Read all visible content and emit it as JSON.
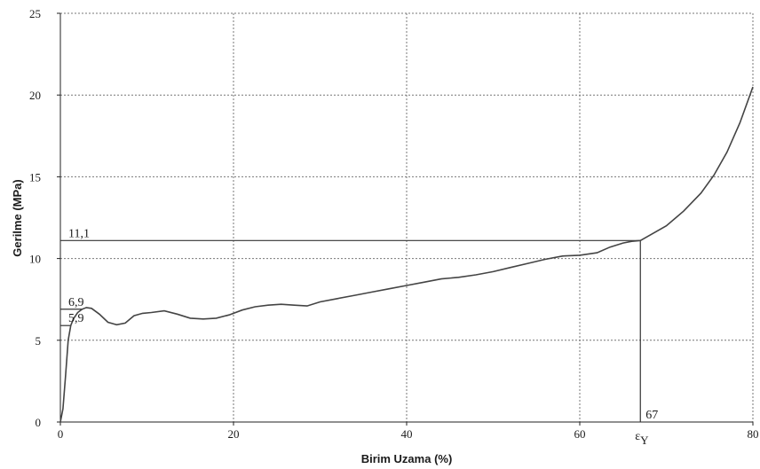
{
  "chart_data": {
    "type": "line",
    "xlabel": "Birim Uzama (%)",
    "ylabel": "Gerilme (MPa)",
    "xlim": [
      0,
      80
    ],
    "ylim": [
      0,
      25
    ],
    "xticks": [
      0,
      20,
      40,
      60,
      80
    ],
    "yticks": [
      0,
      5,
      10,
      15,
      20,
      25
    ],
    "grid": true,
    "series": [
      {
        "x": [
          0,
          0.3,
          0.6,
          0.9,
          1.2,
          1.5,
          2.0,
          2.5,
          3.0,
          3.6,
          4.5,
          5.5,
          6.5,
          7.5,
          8.5,
          9.5,
          10.5,
          12.0,
          13.5,
          15.0,
          16.5,
          18.0,
          19.5,
          21.0,
          22.5,
          24.0,
          25.5,
          27.0,
          28.5,
          30.0,
          32.0,
          34.0,
          36.0,
          38.0,
          40.0,
          42.0,
          44.0,
          46.0,
          48.0,
          50.0,
          52.0,
          54.0,
          56.0,
          58.0,
          60.0,
          62.0,
          63.5,
          65.0,
          66.0,
          67.0,
          68.0,
          70.0,
          72.0,
          74.0,
          75.5,
          77.0,
          78.5,
          80.0
        ],
        "y": [
          0,
          0.8,
          2.8,
          5.0,
          5.9,
          6.3,
          6.7,
          6.9,
          7.0,
          6.95,
          6.6,
          6.1,
          5.95,
          6.05,
          6.5,
          6.65,
          6.7,
          6.8,
          6.6,
          6.35,
          6.3,
          6.35,
          6.55,
          6.85,
          7.05,
          7.15,
          7.2,
          7.15,
          7.1,
          7.35,
          7.55,
          7.75,
          7.95,
          8.15,
          8.35,
          8.55,
          8.75,
          8.85,
          9.0,
          9.2,
          9.45,
          9.7,
          9.95,
          10.15,
          10.2,
          10.35,
          10.7,
          10.95,
          11.05,
          11.1,
          11.4,
          12.0,
          12.9,
          14.0,
          15.1,
          16.5,
          18.3,
          20.5
        ]
      }
    ],
    "annotations": {
      "y_values": [
        "11,1",
        "6,9",
        "5,9"
      ],
      "x_value": "67",
      "epsilon_label": "ε",
      "epsilon_subscript": "Y"
    },
    "reference_lines": {
      "yield_stress": 11.1,
      "upper_stress": 6.9,
      "lower_stress": 5.9,
      "yield_strain": 67
    }
  }
}
